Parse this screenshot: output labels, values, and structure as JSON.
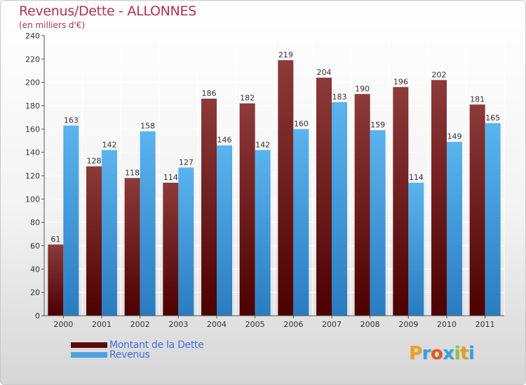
{
  "title": "Revenus/Dette - ALLONNES",
  "subtitle": "(en milliers d'€)",
  "logo": "Proxiti",
  "colors": {
    "title": "#b0305a",
    "dette_top": "#8c3a3a",
    "dette_bottom": "#4d0000",
    "revenus_top": "#5ab4ee",
    "revenus_bottom": "#2a7cc0",
    "legend_text": "#3d6fe0"
  },
  "chart_data": {
    "type": "bar",
    "categories": [
      "2000",
      "2001",
      "2002",
      "2003",
      "2004",
      "2005",
      "2006",
      "2007",
      "2008",
      "2009",
      "2010",
      "2011"
    ],
    "series": [
      {
        "name": "Montant de la Dette",
        "values": [
          61,
          128,
          118,
          114,
          186,
          182,
          219,
          204,
          190,
          196,
          202,
          181
        ]
      },
      {
        "name": "Revenus",
        "values": [
          163,
          142,
          158,
          127,
          146,
          142,
          160,
          183,
          159,
          114,
          149,
          165
        ]
      }
    ],
    "ylim": [
      0,
      240
    ],
    "yticks": [
      0,
      20,
      40,
      60,
      80,
      100,
      120,
      140,
      160,
      180,
      200,
      220,
      240
    ],
    "grid": true,
    "legend": "bottom-left"
  }
}
